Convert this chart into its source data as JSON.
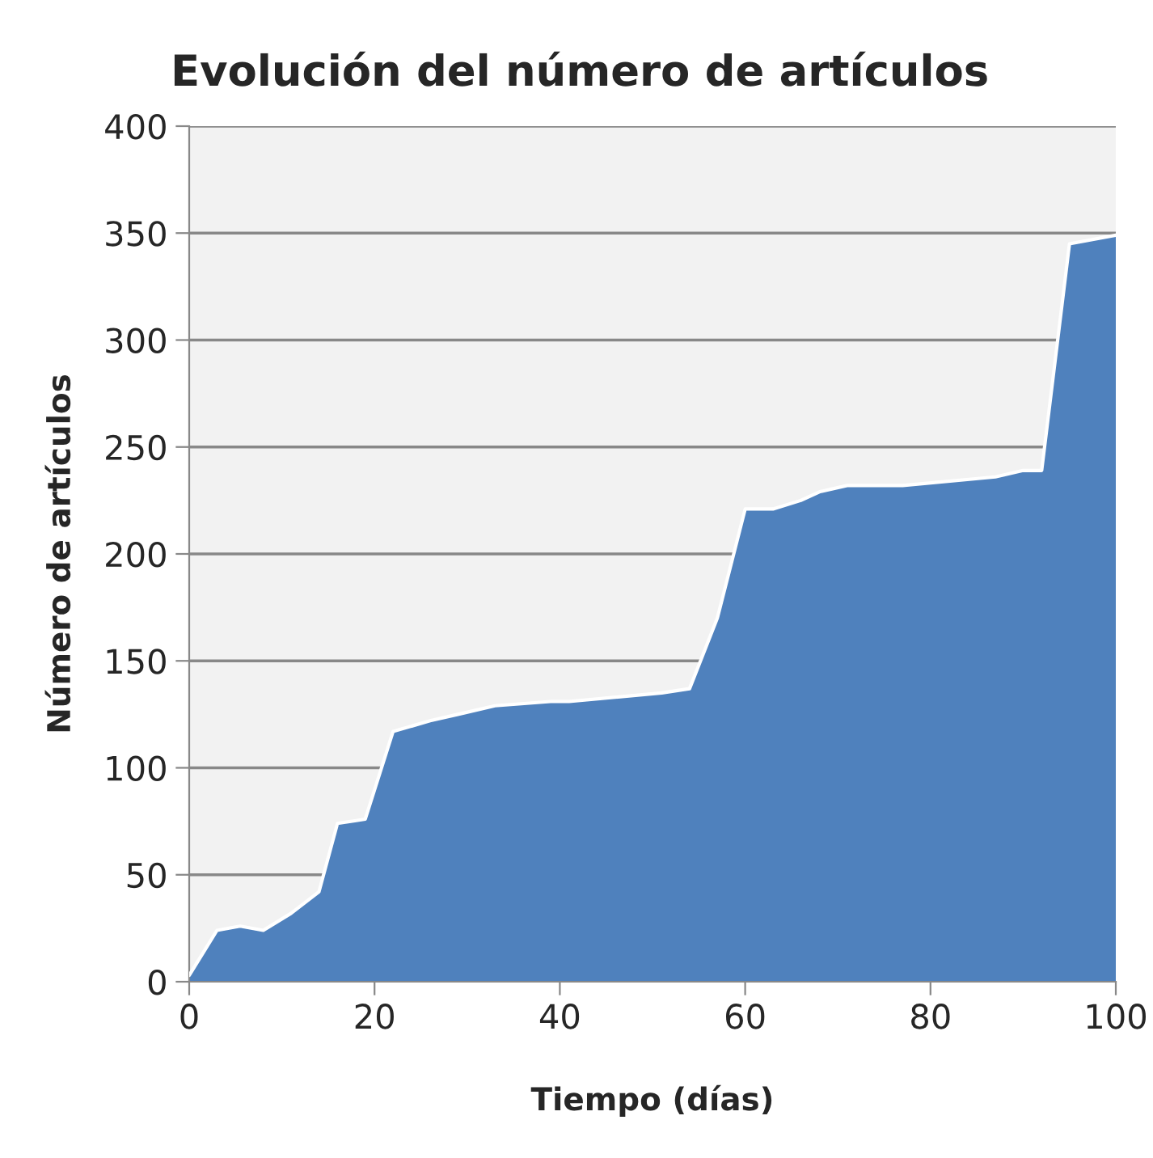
{
  "chart_data": {
    "type": "area",
    "title": "Evolución del número de artículos",
    "xlabel": "Tiempo (días)",
    "ylabel": "Número de artículos",
    "x": [
      0,
      3,
      5.5,
      8,
      11,
      14,
      16,
      19,
      22,
      26,
      29,
      33,
      39,
      41,
      51,
      54,
      57,
      60,
      63,
      66,
      68,
      71,
      77,
      87,
      90,
      92,
      95,
      100
    ],
    "series": [
      {
        "color": "#4f81bd",
        "values": [
          3,
          24,
          26,
          24,
          32,
          42,
          74,
          76,
          117,
          122,
          125,
          129,
          131,
          131,
          135,
          137,
          170,
          221,
          221,
          225,
          229,
          232,
          232,
          236,
          239,
          239,
          345,
          349
        ]
      }
    ],
    "xlim": [
      0,
      100
    ],
    "xticks": [
      0,
      20,
      40,
      60,
      80,
      100
    ],
    "ylim": [
      0,
      400
    ],
    "yticks": [
      0,
      50,
      100,
      150,
      200,
      250,
      300,
      350,
      400
    ],
    "grid": "y",
    "legend": false
  }
}
